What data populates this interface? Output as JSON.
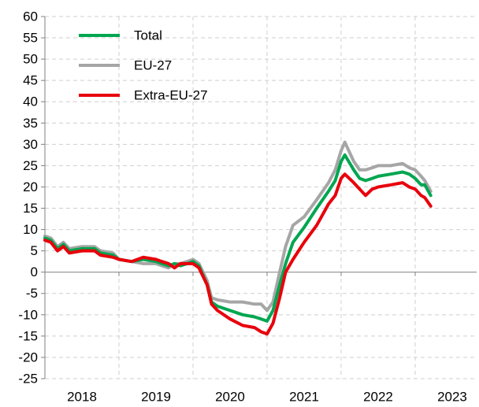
{
  "chart_data": {
    "type": "line",
    "categories": [
      "2018",
      "2019",
      "2020",
      "2021",
      "2022",
      "2023"
    ],
    "x": [
      2018.0,
      2018.08,
      2018.17,
      2018.25,
      2018.33,
      2018.5,
      2018.67,
      2018.75,
      2018.92,
      2019.0,
      2019.17,
      2019.33,
      2019.5,
      2019.58,
      2019.67,
      2019.75,
      2019.83,
      2019.92,
      2020.0,
      2020.08,
      2020.19,
      2020.25,
      2020.33,
      2020.5,
      2020.67,
      2020.83,
      2020.92,
      2021.0,
      2021.08,
      2021.17,
      2021.25,
      2021.35,
      2021.5,
      2021.67,
      2021.83,
      2021.92,
      2022.0,
      2022.05,
      2022.17,
      2022.25,
      2022.33,
      2022.42,
      2022.5,
      2022.67,
      2022.83,
      2022.92,
      2023.0,
      2023.08,
      2023.13,
      2023.21
    ],
    "series": [
      {
        "name": "Total",
        "color": "#00a650",
        "values": [
          8,
          7.5,
          5.5,
          6.5,
          5,
          5.5,
          5.5,
          4.5,
          4,
          3,
          2.5,
          3,
          2.5,
          2,
          1.5,
          2,
          1.5,
          2,
          2.5,
          1.5,
          -3,
          -7,
          -8,
          -9,
          -10,
          -10.5,
          -11,
          -11.5,
          -9,
          -3,
          2,
          7,
          10.5,
          15,
          19,
          21.5,
          26,
          27.5,
          24,
          22,
          21.5,
          22,
          22.5,
          23,
          23.5,
          23,
          22,
          20.5,
          20.5,
          18
        ]
      },
      {
        "name": "EU-27",
        "color": "#a6a6a6",
        "values": [
          8.5,
          8,
          6,
          7,
          5.5,
          6,
          6,
          5,
          4.5,
          3,
          2.5,
          2,
          2,
          1.5,
          1,
          2,
          2,
          2.5,
          3,
          2,
          -2,
          -6,
          -6.5,
          -7,
          -7,
          -7.5,
          -7.5,
          -9,
          -7,
          0,
          6,
          11,
          13,
          17,
          21,
          24,
          28.5,
          30.5,
          26,
          24,
          24,
          24.5,
          25,
          25,
          25.5,
          24.5,
          24,
          22.5,
          21.5,
          19
        ]
      },
      {
        "name": "Extra-EU-27",
        "color": "#e8000b",
        "values": [
          7.5,
          7,
          5,
          6,
          4.5,
          5,
          5,
          4,
          3.5,
          3,
          2.5,
          3.5,
          3,
          2.5,
          2,
          1,
          2,
          2,
          2,
          1,
          -3,
          -7.5,
          -9,
          -11,
          -12.5,
          -13,
          -14,
          -14.5,
          -12,
          -6,
          0,
          3,
          7,
          11,
          16,
          18,
          22,
          23,
          21,
          19.5,
          18,
          19.5,
          20,
          20.5,
          21,
          20,
          19.5,
          18,
          17.5,
          15.5
        ]
      }
    ],
    "xlim": [
      2018,
      2023.83
    ],
    "ylim": [
      -25,
      60
    ],
    "yticks": [
      -25,
      -20,
      -15,
      -10,
      -5,
      0,
      5,
      10,
      15,
      20,
      25,
      30,
      35,
      40,
      45,
      50,
      55,
      60
    ],
    "grid": true,
    "legend": "upper left"
  }
}
